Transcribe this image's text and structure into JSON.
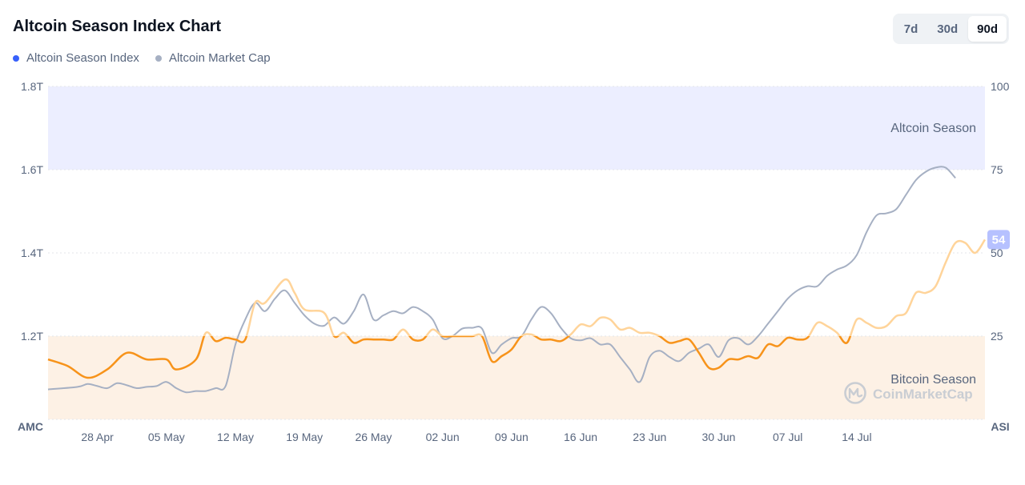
{
  "header": {
    "title": "Altcoin Season Index Chart",
    "legend": [
      {
        "label": "Altcoin Season Index",
        "color": "#3861fb"
      },
      {
        "label": "Altcoin Market Cap",
        "color": "#a6b0c3"
      }
    ],
    "ranges": [
      {
        "label": "7d",
        "active": false
      },
      {
        "label": "30d",
        "active": false
      },
      {
        "label": "90d",
        "active": true
      }
    ]
  },
  "watermark": "CoinMarketCap",
  "chart_data": {
    "type": "line",
    "title": "Altcoin Season Index Chart",
    "left_axis": {
      "label": "AMC",
      "ticks": [
        "1.8T",
        "1.6T",
        "1.4T",
        "1.2T"
      ],
      "range": [
        1.0,
        1.8
      ],
      "unit": "T"
    },
    "right_axis": {
      "label": "ASI",
      "ticks": [
        "100",
        "75",
        "50",
        "25"
      ],
      "range": [
        0,
        100
      ]
    },
    "x_ticks": [
      "28 Apr",
      "05 May",
      "12 May",
      "19 May",
      "26 May",
      "02 Jun",
      "09 Jun",
      "16 Jun",
      "23 Jun",
      "30 Jun",
      "07 Jul",
      "14 Jul"
    ],
    "zones": [
      {
        "label": "Altcoin Season",
        "from": 75,
        "to": 100,
        "color": "#eceeff"
      },
      {
        "label": "Bitcoin Season",
        "from": 0,
        "to": 25,
        "color": "#fdf1e5"
      }
    ],
    "current_index_label": "54",
    "series": [
      {
        "name": "Altcoin Season Index",
        "axis": "right",
        "color_bitcoin_zone": "#f7931a",
        "color_neutral": "#ffd49a",
        "color_altcoin_zone": "#7b8cff",
        "points": [
          [
            0,
            18
          ],
          [
            2,
            16
          ],
          [
            4,
            12.5
          ],
          [
            6,
            15
          ],
          [
            8,
            20
          ],
          [
            10,
            18
          ],
          [
            12,
            18
          ],
          [
            13,
            15
          ],
          [
            15,
            18
          ],
          [
            16,
            26
          ],
          [
            17,
            23.5
          ],
          [
            18,
            24.5
          ],
          [
            19,
            24
          ],
          [
            20,
            24
          ],
          [
            21,
            35
          ],
          [
            22,
            35
          ],
          [
            24,
            42
          ],
          [
            25,
            38
          ],
          [
            26,
            33
          ],
          [
            28,
            32
          ],
          [
            29,
            25
          ],
          [
            30,
            26
          ],
          [
            31,
            23
          ],
          [
            32,
            24
          ],
          [
            33,
            24
          ],
          [
            34,
            24
          ],
          [
            35,
            24
          ],
          [
            36,
            27
          ],
          [
            37,
            24
          ],
          [
            38,
            24
          ],
          [
            39,
            27
          ],
          [
            40,
            25
          ],
          [
            41,
            25
          ],
          [
            42,
            25
          ],
          [
            43,
            25
          ],
          [
            44,
            25
          ],
          [
            45,
            17.5
          ],
          [
            46,
            19
          ],
          [
            47,
            21
          ],
          [
            48,
            25
          ],
          [
            49,
            25.5
          ],
          [
            50,
            24
          ],
          [
            51,
            24
          ],
          [
            52,
            23.5
          ],
          [
            53,
            25.5
          ],
          [
            54,
            28.5
          ],
          [
            55,
            28
          ],
          [
            56,
            30.5
          ],
          [
            57,
            30
          ],
          [
            58,
            27
          ],
          [
            59,
            27.5
          ],
          [
            60,
            26
          ],
          [
            61,
            26
          ],
          [
            62,
            25
          ],
          [
            63,
            23
          ],
          [
            64,
            23.5
          ],
          [
            65,
            24
          ],
          [
            66,
            20
          ],
          [
            67,
            15.5
          ],
          [
            68,
            15.5
          ],
          [
            69,
            18
          ],
          [
            70,
            18
          ],
          [
            71,
            19
          ],
          [
            72,
            18.5
          ],
          [
            73,
            22.5
          ],
          [
            74,
            22
          ],
          [
            75,
            24.5
          ],
          [
            76,
            24
          ],
          [
            77,
            24.5
          ],
          [
            78,
            29
          ],
          [
            79,
            28
          ],
          [
            80,
            26
          ],
          [
            81,
            23
          ],
          [
            82,
            30
          ],
          [
            83,
            29
          ],
          [
            84,
            27.5
          ],
          [
            85,
            28
          ],
          [
            86,
            31
          ],
          [
            87,
            32
          ],
          [
            88,
            38
          ],
          [
            89,
            38
          ],
          [
            90,
            40
          ],
          [
            91,
            47
          ],
          [
            92,
            53
          ],
          [
            93,
            53
          ],
          [
            94,
            50
          ],
          [
            95,
            54
          ]
        ]
      },
      {
        "name": "Altcoin Market Cap",
        "axis": "left",
        "color": "#a6b0c3",
        "points": [
          [
            0,
            1.072
          ],
          [
            3,
            1.078
          ],
          [
            4,
            1.085
          ],
          [
            5,
            1.08
          ],
          [
            6,
            1.075
          ],
          [
            7,
            1.087
          ],
          [
            8,
            1.082
          ],
          [
            9,
            1.075
          ],
          [
            10,
            1.078
          ],
          [
            11,
            1.08
          ],
          [
            12,
            1.09
          ],
          [
            13,
            1.075
          ],
          [
            14,
            1.065
          ],
          [
            15,
            1.068
          ],
          [
            16,
            1.068
          ],
          [
            17,
            1.075
          ],
          [
            18,
            1.08
          ],
          [
            19,
            1.18
          ],
          [
            20,
            1.24
          ],
          [
            21,
            1.28
          ],
          [
            22,
            1.26
          ],
          [
            23,
            1.29
          ],
          [
            24,
            1.31
          ],
          [
            25,
            1.28
          ],
          [
            26,
            1.25
          ],
          [
            27,
            1.23
          ],
          [
            28,
            1.225
          ],
          [
            29,
            1.245
          ],
          [
            30,
            1.23
          ],
          [
            31,
            1.26
          ],
          [
            32,
            1.3
          ],
          [
            33,
            1.24
          ],
          [
            34,
            1.25
          ],
          [
            35,
            1.26
          ],
          [
            36,
            1.255
          ],
          [
            37,
            1.27
          ],
          [
            38,
            1.26
          ],
          [
            39,
            1.24
          ],
          [
            40,
            1.195
          ],
          [
            41,
            1.2
          ],
          [
            42,
            1.218
          ],
          [
            43,
            1.22
          ],
          [
            44,
            1.218
          ],
          [
            45,
            1.16
          ],
          [
            46,
            1.18
          ],
          [
            47,
            1.195
          ],
          [
            48,
            1.2
          ],
          [
            49,
            1.24
          ],
          [
            50,
            1.27
          ],
          [
            51,
            1.255
          ],
          [
            52,
            1.22
          ],
          [
            53,
            1.195
          ],
          [
            54,
            1.19
          ],
          [
            55,
            1.195
          ],
          [
            56,
            1.18
          ],
          [
            57,
            1.18
          ],
          [
            58,
            1.15
          ],
          [
            59,
            1.12
          ],
          [
            60,
            1.09
          ],
          [
            61,
            1.15
          ],
          [
            62,
            1.165
          ],
          [
            63,
            1.15
          ],
          [
            64,
            1.14
          ],
          [
            65,
            1.16
          ],
          [
            66,
            1.17
          ],
          [
            67,
            1.18
          ],
          [
            68,
            1.15
          ],
          [
            69,
            1.19
          ],
          [
            70,
            1.195
          ],
          [
            71,
            1.18
          ],
          [
            72,
            1.2
          ],
          [
            73,
            1.23
          ],
          [
            74,
            1.26
          ],
          [
            75,
            1.29
          ],
          [
            76,
            1.31
          ],
          [
            77,
            1.32
          ],
          [
            78,
            1.32
          ],
          [
            79,
            1.345
          ],
          [
            80,
            1.36
          ],
          [
            81,
            1.37
          ],
          [
            82,
            1.395
          ],
          [
            83,
            1.45
          ],
          [
            84,
            1.49
          ],
          [
            85,
            1.495
          ],
          [
            86,
            1.505
          ],
          [
            87,
            1.54
          ],
          [
            88,
            1.575
          ],
          [
            89,
            1.595
          ],
          [
            90,
            1.605
          ],
          [
            91,
            1.605
          ],
          [
            92,
            1.58
          ]
        ]
      }
    ]
  }
}
